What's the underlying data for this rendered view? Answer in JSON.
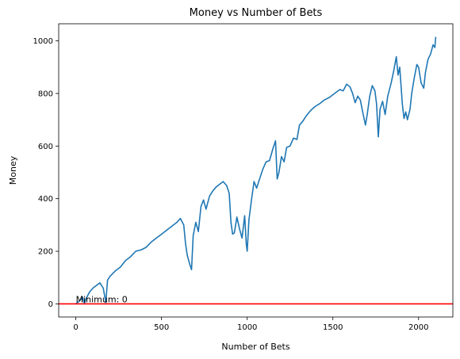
{
  "chart_data": {
    "type": "line",
    "title": "Money vs Number of Bets",
    "xlabel": "Number of Bets",
    "ylabel": "Money",
    "xlim": [
      -100,
      2200
    ],
    "ylim": [
      -50,
      1065
    ],
    "xticks": [
      0,
      500,
      1000,
      1500,
      2000
    ],
    "yticks": [
      0,
      200,
      400,
      600,
      800,
      1000
    ],
    "grid": false,
    "series": [
      {
        "color": "#1f77b4",
        "points": [
          [
            0,
            0
          ],
          [
            20,
            10
          ],
          [
            40,
            25
          ],
          [
            50,
            0
          ],
          [
            60,
            20
          ],
          [
            80,
            45
          ],
          [
            100,
            60
          ],
          [
            120,
            70
          ],
          [
            140,
            80
          ],
          [
            160,
            60
          ],
          [
            175,
            5
          ],
          [
            185,
            90
          ],
          [
            200,
            105
          ],
          [
            230,
            125
          ],
          [
            260,
            140
          ],
          [
            290,
            165
          ],
          [
            320,
            180
          ],
          [
            350,
            200
          ],
          [
            380,
            205
          ],
          [
            410,
            215
          ],
          [
            440,
            235
          ],
          [
            470,
            250
          ],
          [
            500,
            265
          ],
          [
            530,
            280
          ],
          [
            560,
            295
          ],
          [
            590,
            310
          ],
          [
            610,
            325
          ],
          [
            630,
            300
          ],
          [
            640,
            230
          ],
          [
            650,
            185
          ],
          [
            665,
            150
          ],
          [
            675,
            130
          ],
          [
            685,
            260
          ],
          [
            700,
            310
          ],
          [
            715,
            275
          ],
          [
            730,
            370
          ],
          [
            745,
            395
          ],
          [
            760,
            360
          ],
          [
            780,
            410
          ],
          [
            800,
            430
          ],
          [
            820,
            445
          ],
          [
            840,
            455
          ],
          [
            860,
            465
          ],
          [
            880,
            450
          ],
          [
            895,
            420
          ],
          [
            905,
            310
          ],
          [
            915,
            265
          ],
          [
            925,
            270
          ],
          [
            940,
            330
          ],
          [
            955,
            285
          ],
          [
            970,
            250
          ],
          [
            985,
            335
          ],
          [
            995,
            225
          ],
          [
            1000,
            200
          ],
          [
            1010,
            320
          ],
          [
            1025,
            395
          ],
          [
            1040,
            465
          ],
          [
            1055,
            440
          ],
          [
            1070,
            470
          ],
          [
            1090,
            510
          ],
          [
            1110,
            540
          ],
          [
            1130,
            545
          ],
          [
            1150,
            590
          ],
          [
            1165,
            620
          ],
          [
            1175,
            475
          ],
          [
            1185,
            500
          ],
          [
            1200,
            560
          ],
          [
            1215,
            540
          ],
          [
            1230,
            595
          ],
          [
            1250,
            600
          ],
          [
            1270,
            630
          ],
          [
            1290,
            625
          ],
          [
            1305,
            680
          ],
          [
            1325,
            695
          ],
          [
            1345,
            715
          ],
          [
            1370,
            735
          ],
          [
            1395,
            750
          ],
          [
            1420,
            760
          ],
          [
            1450,
            775
          ],
          [
            1480,
            785
          ],
          [
            1510,
            800
          ],
          [
            1540,
            815
          ],
          [
            1560,
            810
          ],
          [
            1580,
            835
          ],
          [
            1600,
            825
          ],
          [
            1615,
            800
          ],
          [
            1630,
            765
          ],
          [
            1645,
            790
          ],
          [
            1660,
            775
          ],
          [
            1675,
            725
          ],
          [
            1690,
            680
          ],
          [
            1700,
            720
          ],
          [
            1715,
            790
          ],
          [
            1730,
            830
          ],
          [
            1745,
            810
          ],
          [
            1755,
            760
          ],
          [
            1765,
            635
          ],
          [
            1775,
            740
          ],
          [
            1790,
            770
          ],
          [
            1805,
            720
          ],
          [
            1820,
            790
          ],
          [
            1840,
            840
          ],
          [
            1855,
            885
          ],
          [
            1870,
            940
          ],
          [
            1880,
            870
          ],
          [
            1890,
            900
          ],
          [
            1905,
            760
          ],
          [
            1915,
            705
          ],
          [
            1925,
            730
          ],
          [
            1935,
            700
          ],
          [
            1950,
            740
          ],
          [
            1960,
            800
          ],
          [
            1975,
            860
          ],
          [
            1990,
            910
          ],
          [
            2000,
            900
          ],
          [
            2015,
            840
          ],
          [
            2030,
            820
          ],
          [
            2040,
            880
          ],
          [
            2055,
            930
          ],
          [
            2070,
            950
          ],
          [
            2085,
            985
          ],
          [
            2095,
            975
          ],
          [
            2100,
            1015
          ]
        ]
      }
    ],
    "hline": {
      "y": 0,
      "color": "#ff0000"
    },
    "annotation": {
      "text": "Minimum: 0",
      "x": 0,
      "y": 0
    }
  }
}
